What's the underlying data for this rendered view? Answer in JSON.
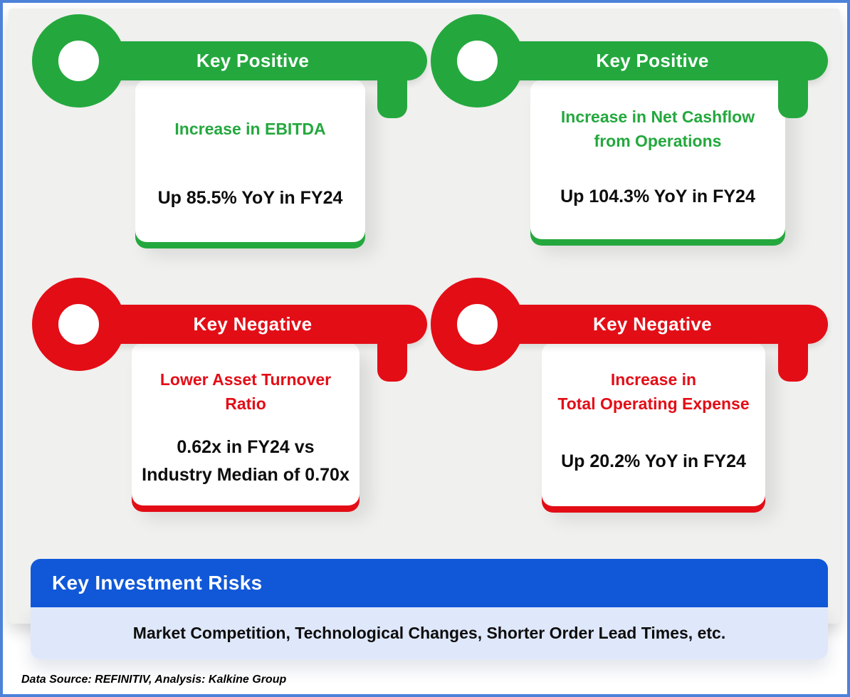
{
  "theme": {
    "colors": {
      "green": "#24a83e",
      "red": "#e30d16",
      "blue": "#1158d8",
      "light-blue": "#dfe8fb",
      "bg": "#f0f0ee",
      "frame-border": "#4d82d9",
      "ink": "#0d0d0d"
    }
  },
  "keys": [
    {
      "id": "positive-1",
      "sentiment": "positive",
      "label": "Key Positive",
      "title_lines": [
        "Increase in EBITDA"
      ],
      "value_lines": [
        "Up 85.5% YoY in FY24"
      ]
    },
    {
      "id": "positive-2",
      "sentiment": "positive",
      "label": "Key Positive",
      "title_lines": [
        "Increase in Net Cashflow",
        "from Operations"
      ],
      "value_lines": [
        "Up 104.3% YoY in FY24"
      ]
    },
    {
      "id": "negative-1",
      "sentiment": "negative",
      "label": "Key Negative",
      "title_lines": [
        "Lower Asset Turnover",
        "Ratio"
      ],
      "value_lines": [
        "0.62x in FY24 vs",
        "Industry Median of 0.70x"
      ]
    },
    {
      "id": "negative-2",
      "sentiment": "negative",
      "label": "Key Negative",
      "title_lines": [
        "Increase in",
        "Total Operating Expense"
      ],
      "value_lines": [
        "Up 20.2% YoY in FY24"
      ]
    }
  ],
  "risks": {
    "header": "Key Investment Risks",
    "items_text": "Market Competition, Technological Changes, Shorter Order Lead Times, etc."
  },
  "footer": {
    "source_note": "Data Source: REFINITIV, Analysis: Kalkine Group"
  }
}
